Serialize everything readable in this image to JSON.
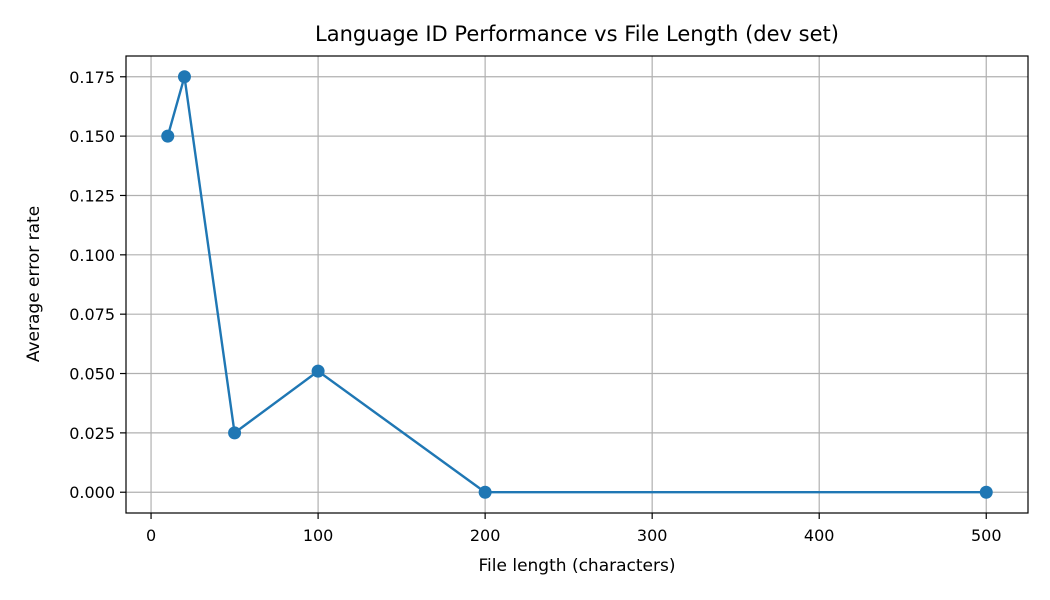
{
  "chart_data": {
    "type": "line",
    "title": "Language ID Performance vs File Length (dev set)",
    "xlabel": "File length (characters)",
    "ylabel": "Average error rate",
    "xlim": [
      -15,
      525
    ],
    "ylim": [
      -0.00875,
      0.18375
    ],
    "xticks": [
      0,
      100,
      200,
      300,
      400,
      500
    ],
    "xtick_labels": [
      "0",
      "100",
      "200",
      "300",
      "400",
      "500"
    ],
    "yticks": [
      0.0,
      0.025,
      0.05,
      0.075,
      0.1,
      0.125,
      0.15,
      0.175
    ],
    "ytick_labels": [
      "0.000",
      "0.025",
      "0.050",
      "0.075",
      "0.100",
      "0.125",
      "0.150",
      "0.175"
    ],
    "grid": true,
    "series": [
      {
        "color": "#1f77b4",
        "marker": "circle",
        "x": [
          10,
          20,
          50,
          100,
          200,
          500
        ],
        "y": [
          0.15,
          0.175,
          0.025,
          0.051,
          0.0,
          0.0
        ]
      }
    ]
  }
}
